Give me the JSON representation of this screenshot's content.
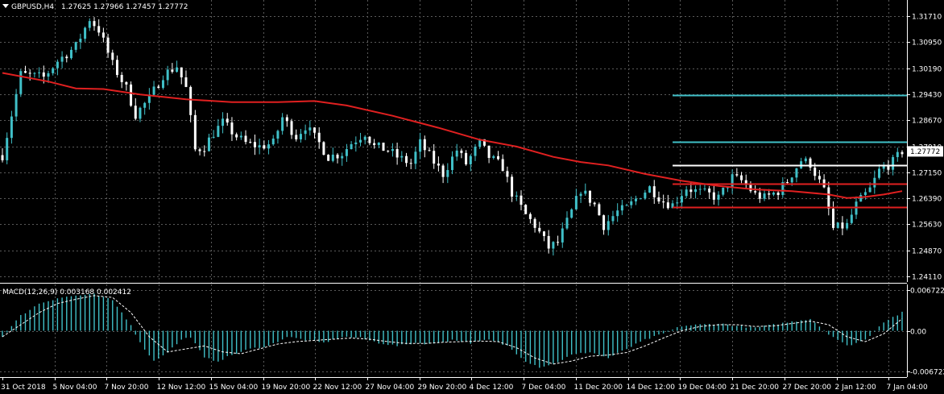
{
  "header": {
    "title": "GBPUSD,H4",
    "ohlc": "1.27625 1.27966 1.27457 1.27772"
  },
  "colors": {
    "background": "#000000",
    "grid": "#5a5a5a",
    "bull": "#40c0c8",
    "bear": "#ffffff",
    "ma": "#e02020",
    "level_cyan": "#40c0c8",
    "level_white": "#ffffff",
    "level_red": "#e02020",
    "macd_hist": "#40c0c8",
    "macd_signal": "#ffffff"
  },
  "chart_data": [
    {
      "type": "candlestick",
      "symbol": "GBPUSD",
      "timeframe": "H4",
      "current_price_label": "1.27772",
      "ylim": [
        1.2411,
        1.3171
      ],
      "y_ticks": [
        "1.31710",
        "1.30950",
        "1.30190",
        "1.29430",
        "1.28670",
        "1.27910",
        "1.27150",
        "1.26390",
        "1.25630",
        "1.24870",
        "1.24110"
      ],
      "x_ticks": [
        "31 Oct 2018",
        "5 Nov 04:00",
        "7 Nov 20:00",
        "12 Nov 12:00",
        "15 Nov 04:00",
        "19 Nov 20:00",
        "22 Nov 12:00",
        "27 Nov 04:00",
        "29 Nov 20:00",
        "4 Dec 12:00",
        "7 Dec 04:00",
        "11 Dec 20:00",
        "14 Dec 12:00",
        "19 Dec 04:00",
        "21 Dec 20:00",
        "27 Dec 20:00",
        "2 Jan 12:00",
        "7 Jan 04:00"
      ],
      "close_path": [
        [
          0,
          1.2765
        ],
        [
          4,
          1.3001
        ],
        [
          9,
          1.2992
        ],
        [
          12,
          1.304
        ],
        [
          16,
          1.3083
        ],
        [
          19,
          1.3163
        ],
        [
          21,
          1.3131
        ],
        [
          24,
          1.303
        ],
        [
          27,
          1.296
        ],
        [
          29,
          1.2884
        ],
        [
          32,
          1.293
        ],
        [
          35,
          1.2999
        ],
        [
          38,
          1.3025
        ],
        [
          40,
          1.296
        ],
        [
          42,
          1.278
        ],
        [
          44,
          1.279
        ],
        [
          46,
          1.283
        ],
        [
          48,
          1.286
        ],
        [
          51,
          1.282
        ],
        [
          53,
          1.28
        ],
        [
          56,
          1.279
        ],
        [
          59,
          1.28
        ],
        [
          61,
          1.2875
        ],
        [
          64,
          1.282
        ],
        [
          66,
          1.285
        ],
        [
          69,
          1.28
        ],
        [
          71,
          1.276
        ],
        [
          74,
          1.277
        ],
        [
          76,
          1.28
        ],
        [
          79,
          1.283
        ],
        [
          81,
          1.279
        ],
        [
          84,
          1.278
        ],
        [
          86,
          1.276
        ],
        [
          89,
          1.274
        ],
        [
          91,
          1.28
        ],
        [
          94,
          1.2745
        ],
        [
          96,
          1.271
        ],
        [
          99,
          1.278
        ],
        [
          101,
          1.274
        ],
        [
          104,
          1.28
        ],
        [
          106,
          1.276
        ],
        [
          109,
          1.273
        ],
        [
          111,
          1.2655
        ],
        [
          114,
          1.259
        ],
        [
          116,
          1.256
        ],
        [
          119,
          1.2495
        ],
        [
          121,
          1.251
        ],
        [
          124,
          1.26
        ],
        [
          126,
          1.2665
        ],
        [
          129,
          1.262
        ],
        [
          131,
          1.256
        ],
        [
          134,
          1.26
        ],
        [
          136,
          1.261
        ],
        [
          139,
          1.265
        ],
        [
          141,
          1.267
        ],
        [
          144,
          1.263
        ],
        [
          146,
          1.262
        ],
        [
          149,
          1.267
        ],
        [
          151,
          1.266
        ],
        [
          154,
          1.265
        ],
        [
          156,
          1.264
        ],
        [
          159,
          1.27
        ],
        [
          161,
          1.269
        ],
        [
          164,
          1.265
        ],
        [
          166,
          1.264
        ],
        [
          169,
          1.266
        ],
        [
          171,
          1.269
        ],
        [
          174,
          1.275
        ],
        [
          176,
          1.274
        ],
        [
          179,
          1.266
        ],
        [
          181,
          1.255
        ],
        [
          184,
          1.256
        ],
        [
          186,
          1.262
        ],
        [
          189,
          1.2665
        ],
        [
          191,
          1.272
        ],
        [
          194,
          1.2745
        ],
        [
          196,
          1.2777
        ]
      ],
      "moving_average": [
        [
          0,
          1.3005
        ],
        [
          10,
          1.298
        ],
        [
          16,
          1.296
        ],
        [
          22,
          1.2958
        ],
        [
          30,
          1.2942
        ],
        [
          40,
          1.2928
        ],
        [
          50,
          1.292
        ],
        [
          60,
          1.292
        ],
        [
          68,
          1.2923
        ],
        [
          75,
          1.291
        ],
        [
          85,
          1.288
        ],
        [
          95,
          1.2845
        ],
        [
          104,
          1.281
        ],
        [
          112,
          1.279
        ],
        [
          120,
          1.276
        ],
        [
          126,
          1.2745
        ],
        [
          132,
          1.2735
        ],
        [
          140,
          1.271
        ],
        [
          148,
          1.269
        ],
        [
          156,
          1.2675
        ],
        [
          164,
          1.2665
        ],
        [
          172,
          1.266
        ],
        [
          180,
          1.265
        ],
        [
          184,
          1.264
        ],
        [
          188,
          1.2643
        ],
        [
          192,
          1.265
        ],
        [
          196,
          1.266
        ]
      ],
      "levels": [
        {
          "color": "cyan",
          "price": 1.2941,
          "from_index": 146
        },
        {
          "color": "cyan",
          "price": 1.2805,
          "from_index": 146
        },
        {
          "color": "white",
          "price": 1.2735,
          "from_index": 146
        },
        {
          "color": "red",
          "price": 1.2682,
          "from_index": 146
        },
        {
          "color": "red",
          "price": 1.2614,
          "from_index": 146
        }
      ]
    },
    {
      "type": "macd",
      "label": "MACD(12,26,9) 0.003168 0.002412",
      "ylim": [
        -0.006722,
        0.006722
      ],
      "y_ticks": [
        "0.006722",
        "0.00",
        "-0.006722"
      ],
      "histogram_path": [
        [
          0,
          -0.001
        ],
        [
          4,
          0.0025
        ],
        [
          8,
          0.0045
        ],
        [
          12,
          0.0054
        ],
        [
          16,
          0.0058
        ],
        [
          20,
          0.006
        ],
        [
          24,
          0.005
        ],
        [
          28,
          0.001
        ],
        [
          30,
          -0.002
        ],
        [
          33,
          -0.005
        ],
        [
          36,
          -0.0035
        ],
        [
          39,
          -0.0015
        ],
        [
          41,
          -0.001
        ],
        [
          44,
          -0.0045
        ],
        [
          47,
          -0.005
        ],
        [
          50,
          -0.004
        ],
        [
          54,
          -0.003
        ],
        [
          58,
          -0.0025
        ],
        [
          62,
          -0.001
        ],
        [
          66,
          -0.0015
        ],
        [
          70,
          -0.002
        ],
        [
          74,
          -0.001
        ],
        [
          78,
          -0.0012
        ],
        [
          82,
          -0.002
        ],
        [
          86,
          -0.0025
        ],
        [
          90,
          -0.002
        ],
        [
          94,
          -0.0022
        ],
        [
          98,
          -0.0015
        ],
        [
          102,
          -0.002
        ],
        [
          106,
          -0.0015
        ],
        [
          110,
          -0.0025
        ],
        [
          114,
          -0.005
        ],
        [
          117,
          -0.006
        ],
        [
          120,
          -0.0055
        ],
        [
          124,
          -0.004
        ],
        [
          128,
          -0.0035
        ],
        [
          132,
          -0.0045
        ],
        [
          136,
          -0.003
        ],
        [
          140,
          -0.0015
        ],
        [
          144,
          -0.0005
        ],
        [
          148,
          0.0008
        ],
        [
          152,
          0.001
        ],
        [
          156,
          0.0012
        ],
        [
          160,
          0.0008
        ],
        [
          164,
          0.0005
        ],
        [
          168,
          0.001
        ],
        [
          172,
          0.0015
        ],
        [
          176,
          0.002
        ],
        [
          180,
          -0.0005
        ],
        [
          184,
          -0.0025
        ],
        [
          188,
          -0.0015
        ],
        [
          192,
          0.0015
        ],
        [
          196,
          0.003
        ]
      ],
      "signal_path": [
        [
          0,
          -0.001
        ],
        [
          4,
          0.001
        ],
        [
          8,
          0.003
        ],
        [
          12,
          0.0045
        ],
        [
          16,
          0.0052
        ],
        [
          20,
          0.0058
        ],
        [
          24,
          0.0055
        ],
        [
          28,
          0.003
        ],
        [
          32,
          -0.001
        ],
        [
          36,
          -0.0035
        ],
        [
          40,
          -0.003
        ],
        [
          44,
          -0.0025
        ],
        [
          48,
          -0.0035
        ],
        [
          52,
          -0.0038
        ],
        [
          56,
          -0.003
        ],
        [
          60,
          -0.0022
        ],
        [
          64,
          -0.0018
        ],
        [
          68,
          -0.0016
        ],
        [
          72,
          -0.0014
        ],
        [
          76,
          -0.0012
        ],
        [
          80,
          -0.0014
        ],
        [
          84,
          -0.0018
        ],
        [
          88,
          -0.0021
        ],
        [
          92,
          -0.0021
        ],
        [
          96,
          -0.0019
        ],
        [
          100,
          -0.0018
        ],
        [
          104,
          -0.0017
        ],
        [
          108,
          -0.0018
        ],
        [
          112,
          -0.0028
        ],
        [
          116,
          -0.0045
        ],
        [
          120,
          -0.0055
        ],
        [
          124,
          -0.005
        ],
        [
          128,
          -0.0042
        ],
        [
          132,
          -0.004
        ],
        [
          136,
          -0.0036
        ],
        [
          140,
          -0.0025
        ],
        [
          144,
          -0.0012
        ],
        [
          148,
          0.0
        ],
        [
          152,
          0.0007
        ],
        [
          156,
          0.001
        ],
        [
          160,
          0.001
        ],
        [
          164,
          0.0007
        ],
        [
          168,
          0.0008
        ],
        [
          172,
          0.0012
        ],
        [
          176,
          0.0016
        ],
        [
          180,
          0.001
        ],
        [
          184,
          -0.001
        ],
        [
          188,
          -0.0018
        ],
        [
          192,
          -0.0005
        ],
        [
          196,
          0.002
        ]
      ]
    }
  ]
}
